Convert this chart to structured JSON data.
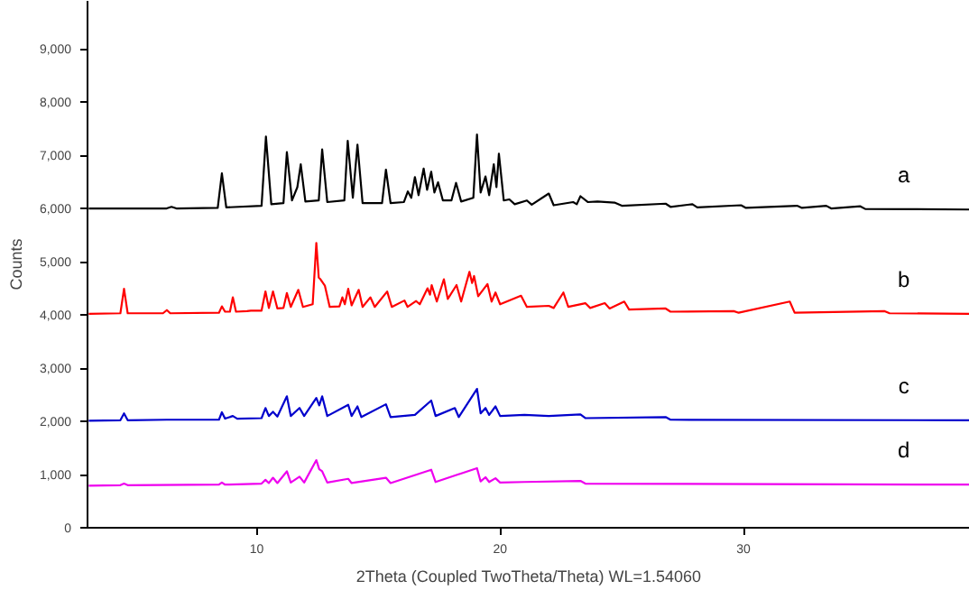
{
  "chart_data": {
    "type": "line",
    "xlabel": "2Theta (Coupled TwoTheta/Theta) WL=1.54060",
    "ylabel": "Counts",
    "xlim": [
      3.05,
      39.3
    ],
    "ylim": [
      0,
      9900
    ],
    "xticks": [
      10,
      20,
      30
    ],
    "yticks": [
      0,
      {
        "value": 1000,
        "label": "1,000"
      },
      {
        "value": 2000,
        "label": "2,000"
      },
      {
        "value": 3000,
        "label": "3,000"
      },
      {
        "value": 4000,
        "label": "4,000"
      },
      {
        "value": 5000,
        "label": "5,000"
      },
      {
        "value": 6000,
        "label": "6,000"
      },
      {
        "value": 7000,
        "label": "7,000"
      },
      {
        "value": 8000,
        "label": "8,000"
      },
      {
        "value": 9000,
        "label": "9,000"
      }
    ],
    "grid": false,
    "legend": false,
    "marker": "none",
    "line_style": "solid",
    "series": [
      {
        "name": "a",
        "color": "#000000",
        "x": [
          3.1,
          6.3,
          6.5,
          6.7,
          8.4,
          8.57,
          8.75,
          10.2,
          10.38,
          10.6,
          11.1,
          11.24,
          11.45,
          11.67,
          11.81,
          12.0,
          12.55,
          12.69,
          12.9,
          13.6,
          13.74,
          13.95,
          14.14,
          14.35,
          15.15,
          15.31,
          15.5,
          16.05,
          16.21,
          16.35,
          16.5,
          16.65,
          16.86,
          17.0,
          17.17,
          17.3,
          17.45,
          17.65,
          18.0,
          18.19,
          18.4,
          18.9,
          19.05,
          19.2,
          19.4,
          19.55,
          19.74,
          19.85,
          19.95,
          20.15,
          20.38,
          20.6,
          21.1,
          21.3,
          22.0,
          22.2,
          23.0,
          23.15,
          23.3,
          23.6,
          24.0,
          24.7,
          25.0,
          26.8,
          27.0,
          27.9,
          28.1,
          29.9,
          30.1,
          32.2,
          32.4,
          33.4,
          33.6,
          34.8,
          35.0,
          39.3
        ],
        "values": [
          6000,
          6000,
          6030,
          6000,
          6010,
          6660,
          6020,
          6050,
          7350,
          6080,
          6100,
          7060,
          6150,
          6400,
          6830,
          6130,
          6150,
          7110,
          6120,
          6150,
          7270,
          6200,
          7200,
          6100,
          6100,
          6730,
          6100,
          6120,
          6320,
          6200,
          6590,
          6250,
          6750,
          6350,
          6690,
          6300,
          6490,
          6150,
          6150,
          6480,
          6130,
          6200,
          7390,
          6300,
          6600,
          6250,
          6830,
          6400,
          7030,
          6150,
          6170,
          6080,
          6150,
          6070,
          6280,
          6060,
          6120,
          6080,
          6230,
          6120,
          6130,
          6110,
          6050,
          6090,
          6030,
          6080,
          6020,
          6060,
          6010,
          6050,
          6010,
          6050,
          6000,
          6040,
          5990,
          5980
        ]
      },
      {
        "name": "b",
        "color": "#ff0000",
        "x": [
          3.1,
          4.4,
          4.55,
          4.7,
          6.15,
          6.31,
          6.45,
          8.45,
          8.57,
          8.7,
          8.9,
          9.02,
          9.15,
          9.6,
          9.76,
          10.2,
          10.36,
          10.5,
          10.67,
          10.85,
          11.1,
          11.24,
          11.4,
          11.71,
          11.9,
          12.3,
          12.45,
          12.55,
          12.62,
          12.8,
          13.0,
          13.4,
          13.52,
          13.62,
          13.76,
          13.9,
          14.19,
          14.35,
          14.67,
          14.85,
          15.36,
          15.55,
          16.07,
          16.2,
          16.55,
          16.7,
          17.02,
          17.12,
          17.19,
          17.4,
          17.69,
          17.85,
          18.21,
          18.4,
          18.74,
          18.85,
          18.93,
          19.1,
          19.48,
          19.65,
          19.81,
          20.0,
          20.86,
          21.1,
          22.0,
          22.2,
          22.6,
          22.8,
          23.5,
          23.7,
          24.3,
          24.5,
          25.1,
          25.3,
          26.8,
          27.0,
          29.6,
          29.8,
          31.9,
          32.1,
          35.8,
          36.0,
          39.3
        ],
        "values": [
          4020,
          4030,
          4490,
          4030,
          4030,
          4090,
          4030,
          4040,
          4160,
          4060,
          4060,
          4330,
          4060,
          4070,
          4080,
          4080,
          4440,
          4130,
          4440,
          4120,
          4130,
          4410,
          4150,
          4470,
          4150,
          4200,
          5350,
          4700,
          4670,
          4550,
          4150,
          4160,
          4330,
          4200,
          4490,
          4180,
          4470,
          4150,
          4330,
          4150,
          4440,
          4150,
          4270,
          4150,
          4260,
          4200,
          4500,
          4380,
          4560,
          4250,
          4670,
          4300,
          4560,
          4250,
          4810,
          4600,
          4730,
          4350,
          4580,
          4250,
          4420,
          4200,
          4360,
          4150,
          4170,
          4130,
          4420,
          4150,
          4220,
          4130,
          4220,
          4120,
          4250,
          4100,
          4120,
          4060,
          4070,
          4040,
          4250,
          4040,
          4070,
          4030,
          4020
        ]
      },
      {
        "name": "c",
        "color": "#0000cc",
        "x": [
          3.1,
          4.4,
          4.55,
          4.7,
          6.3,
          8.45,
          8.57,
          8.7,
          9.02,
          9.2,
          10.2,
          10.36,
          10.5,
          10.67,
          10.85,
          11.24,
          11.4,
          11.76,
          11.95,
          12.45,
          12.57,
          12.69,
          12.9,
          13.76,
          13.9,
          14.14,
          14.3,
          15.31,
          15.5,
          16.5,
          17.17,
          17.35,
          18.14,
          18.3,
          19.05,
          19.2,
          19.4,
          19.55,
          19.81,
          20.0,
          21.0,
          22.0,
          23.3,
          23.5,
          26.8,
          27.0,
          39.3
        ],
        "values": [
          2010,
          2020,
          2150,
          2020,
          2030,
          2030,
          2170,
          2050,
          2100,
          2050,
          2060,
          2250,
          2100,
          2180,
          2090,
          2470,
          2100,
          2250,
          2100,
          2440,
          2300,
          2470,
          2100,
          2310,
          2100,
          2280,
          2080,
          2320,
          2080,
          2120,
          2390,
          2100,
          2250,
          2080,
          2610,
          2150,
          2250,
          2120,
          2280,
          2100,
          2120,
          2100,
          2130,
          2060,
          2080,
          2030,
          2020
        ]
      },
      {
        "name": "d",
        "color": "#ee00ee",
        "x": [
          3.1,
          4.4,
          4.55,
          4.7,
          8.45,
          8.57,
          8.7,
          10.2,
          10.36,
          10.5,
          10.67,
          10.85,
          11.24,
          11.4,
          11.76,
          11.95,
          12.45,
          12.57,
          12.69,
          12.9,
          13.76,
          13.9,
          15.31,
          15.5,
          17.17,
          17.35,
          19.05,
          19.2,
          19.4,
          19.55,
          19.81,
          20.0,
          21.0,
          23.3,
          23.5,
          39.3
        ],
        "values": [
          790,
          800,
          830,
          800,
          810,
          850,
          810,
          830,
          900,
          840,
          940,
          840,
          1060,
          850,
          960,
          850,
          1270,
          1100,
          1060,
          850,
          920,
          840,
          940,
          840,
          1090,
          860,
          1120,
          870,
          950,
          860,
          930,
          850,
          860,
          880,
          830,
          810
        ]
      }
    ]
  }
}
